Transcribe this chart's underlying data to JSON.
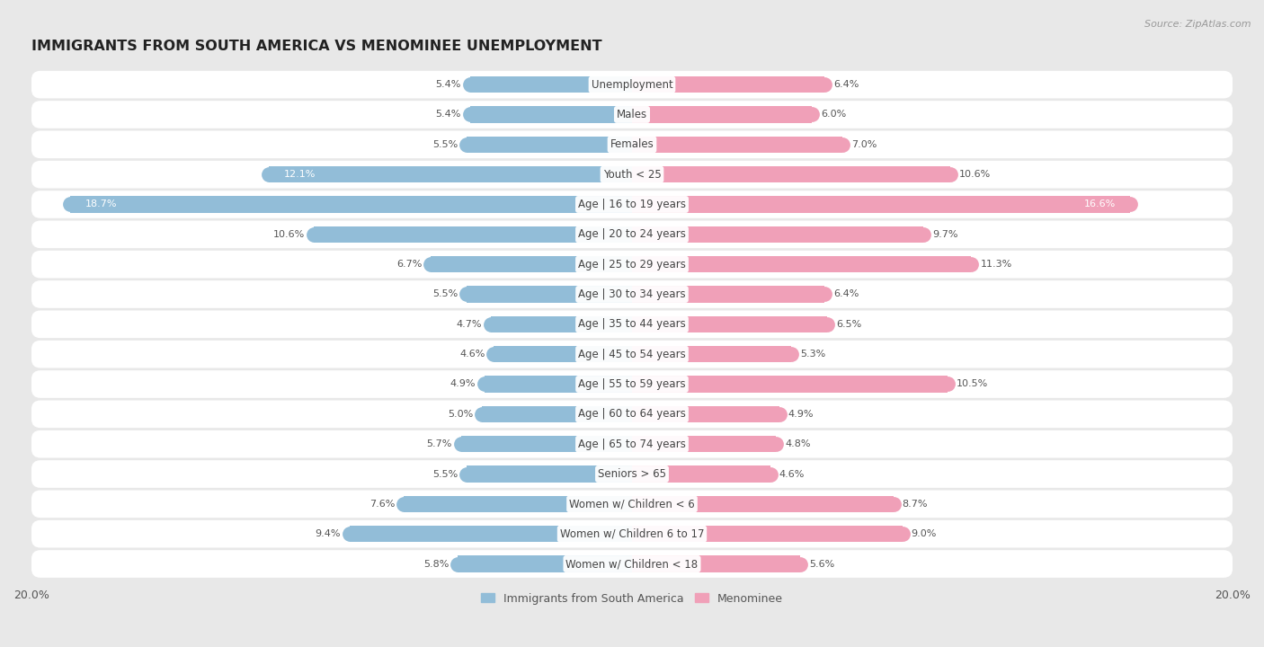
{
  "title": "IMMIGRANTS FROM SOUTH AMERICA VS MENOMINEE UNEMPLOYMENT",
  "source": "Source: ZipAtlas.com",
  "categories": [
    "Unemployment",
    "Males",
    "Females",
    "Youth < 25",
    "Age | 16 to 19 years",
    "Age | 20 to 24 years",
    "Age | 25 to 29 years",
    "Age | 30 to 34 years",
    "Age | 35 to 44 years",
    "Age | 45 to 54 years",
    "Age | 55 to 59 years",
    "Age | 60 to 64 years",
    "Age | 65 to 74 years",
    "Seniors > 65",
    "Women w/ Children < 6",
    "Women w/ Children 6 to 17",
    "Women w/ Children < 18"
  ],
  "left_values": [
    5.4,
    5.4,
    5.5,
    12.1,
    18.7,
    10.6,
    6.7,
    5.5,
    4.7,
    4.6,
    4.9,
    5.0,
    5.7,
    5.5,
    7.6,
    9.4,
    5.8
  ],
  "right_values": [
    6.4,
    6.0,
    7.0,
    10.6,
    16.6,
    9.7,
    11.3,
    6.4,
    6.5,
    5.3,
    10.5,
    4.9,
    4.8,
    4.6,
    8.7,
    9.0,
    5.6
  ],
  "left_color": "#92bdd8",
  "right_color": "#f0a0b8",
  "left_label": "Immigrants from South America",
  "right_label": "Menominee",
  "xlim": 20.0,
  "background_color": "#e8e8e8",
  "row_bg_color": "#f0f0f0",
  "title_fontsize": 11.5,
  "label_fontsize": 8.5,
  "value_fontsize": 8.0
}
